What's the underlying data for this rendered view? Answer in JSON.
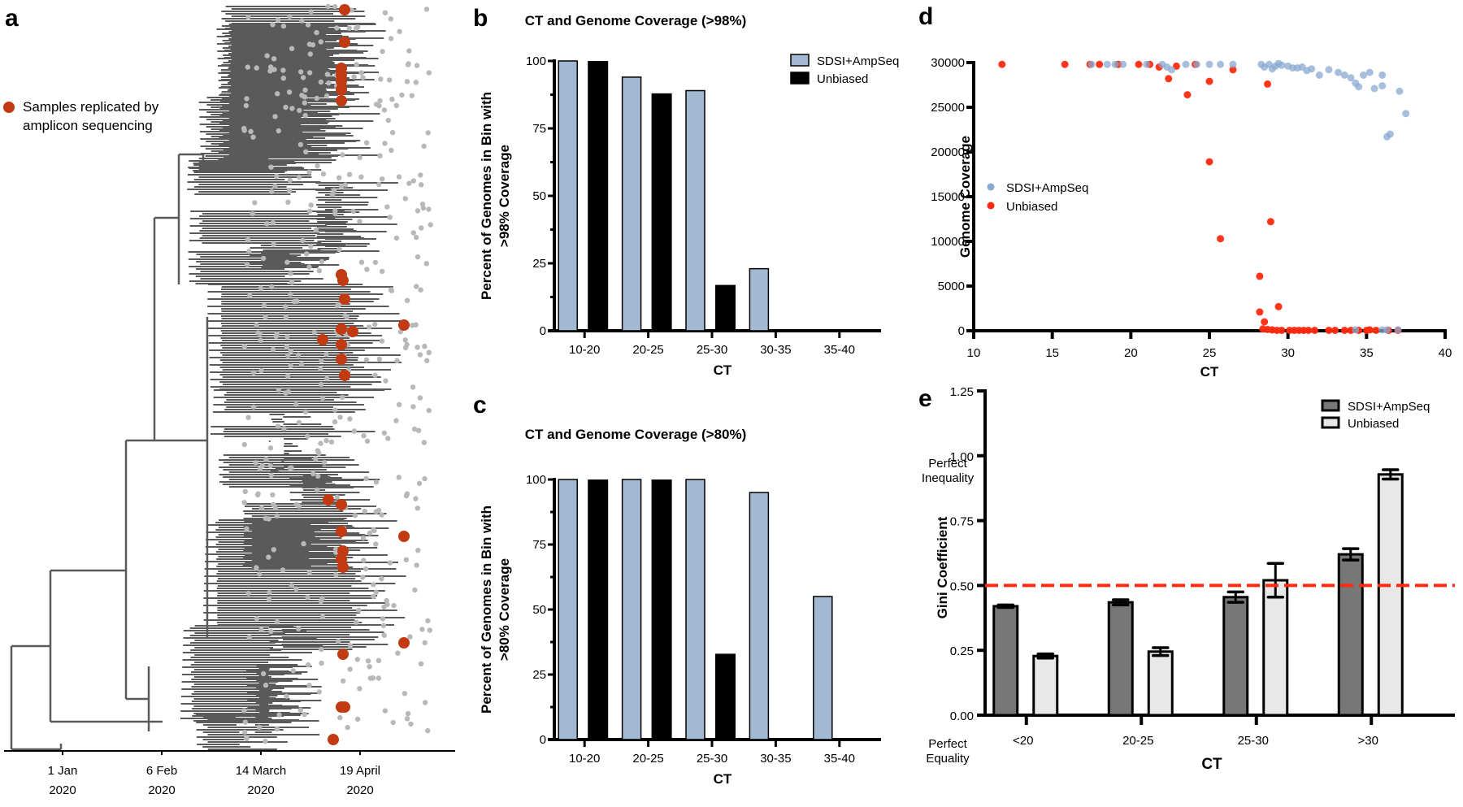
{
  "figure": {
    "panel_letters": [
      "a",
      "b",
      "c",
      "d",
      "e"
    ]
  },
  "colors": {
    "sdsi_bar": "#a3b8d1",
    "unbiased_bar": "#000000",
    "sdsi_point": "#8aa9d1",
    "unbiased_point": "#ff2a10",
    "tree_branch": "#5a5a5a",
    "tree_tip": "#b8b8b8",
    "replicated": "#c23a12",
    "gini_sdsi": "#777777",
    "gini_unbiased": "#e8e8e8",
    "threshold": "#ff2a10"
  },
  "chart_data": [
    {
      "panel": "a",
      "type": "tree",
      "legend": [
        "Samples replicated by",
        "amplicon sequencing"
      ],
      "x_ticks": [
        {
          "line1": "1 Jan",
          "line2": "2020"
        },
        {
          "line1": "6 Feb",
          "line2": "2020"
        },
        {
          "line1": "14 March",
          "line2": "2020"
        },
        {
          "line1": "19 April",
          "line2": "2020"
        }
      ]
    },
    {
      "panel": "b",
      "type": "bar",
      "title": "CT and Genome Coverage (>98%)",
      "xlabel": "CT",
      "ylabel": [
        "Percent of Genomes in Bin with",
        ">98% Coverage"
      ],
      "categories": [
        "10-20",
        "20-25",
        "25-30",
        "30-35",
        "35-40"
      ],
      "series": [
        {
          "name": "SDSI+AmpSeq",
          "values": [
            100,
            94,
            89,
            23,
            0
          ]
        },
        {
          "name": "Unbiased",
          "values": [
            100,
            88,
            17,
            0,
            0
          ]
        }
      ],
      "ylim": [
        0,
        100
      ],
      "yticks": [
        0,
        25,
        50,
        75,
        100
      ],
      "legend_position": "top-right"
    },
    {
      "panel": "c",
      "type": "bar",
      "title": "CT and Genome Coverage (>80%)",
      "xlabel": "CT",
      "ylabel": [
        "Percent of Genomes in Bin with",
        ">80% Coverage"
      ],
      "categories": [
        "10-20",
        "20-25",
        "25-30",
        "30-35",
        "35-40"
      ],
      "series": [
        {
          "name": "SDSI+AmpSeq",
          "values": [
            100,
            100,
            100,
            95,
            55
          ]
        },
        {
          "name": "Unbiased",
          "values": [
            100,
            100,
            33,
            0,
            0
          ]
        }
      ],
      "ylim": [
        0,
        100
      ],
      "yticks": [
        0,
        25,
        50,
        75,
        100
      ]
    },
    {
      "panel": "d",
      "type": "scatter",
      "xlabel": "CT",
      "ylabel": "Genome Coverage",
      "xlim": [
        10,
        40
      ],
      "ylim": [
        0,
        30000
      ],
      "xticks": [
        10,
        15,
        20,
        25,
        30,
        35,
        40
      ],
      "yticks": [
        0,
        5000,
        10000,
        15000,
        20000,
        25000,
        30000
      ],
      "legend_position": "center-left",
      "series": [
        {
          "name": "SDSI+AmpSeq",
          "points": [
            [
              17.5,
              29800
            ],
            [
              18.5,
              29800
            ],
            [
              19,
              29800
            ],
            [
              19.5,
              29800
            ],
            [
              21,
              29800
            ],
            [
              22,
              29800
            ],
            [
              22.3,
              29500
            ],
            [
              22.6,
              29200
            ],
            [
              23.5,
              29800
            ],
            [
              24.2,
              29800
            ],
            [
              25,
              29800
            ],
            [
              25.7,
              29800
            ],
            [
              26.5,
              29800
            ],
            [
              28.3,
              29800
            ],
            [
              28.5,
              29500
            ],
            [
              28.8,
              29800
            ],
            [
              29,
              29300
            ],
            [
              29.2,
              29600
            ],
            [
              29.4,
              29900
            ],
            [
              29.6,
              29700
            ],
            [
              30,
              29600
            ],
            [
              30.3,
              29400
            ],
            [
              30.6,
              29400
            ],
            [
              30.9,
              29500
            ],
            [
              31.2,
              29100
            ],
            [
              31.5,
              29300
            ],
            [
              32,
              28600
            ],
            [
              32.6,
              29200
            ],
            [
              33.2,
              28900
            ],
            [
              33.6,
              28600
            ],
            [
              34,
              28300
            ],
            [
              34.3,
              27700
            ],
            [
              34.5,
              27300
            ],
            [
              34.8,
              28600
            ],
            [
              35.2,
              28900
            ],
            [
              35.5,
              27100
            ],
            [
              36,
              28600
            ],
            [
              36,
              27400
            ],
            [
              36.3,
              21700
            ],
            [
              36.5,
              22000
            ],
            [
              37.1,
              26800
            ],
            [
              37.5,
              24300
            ],
            [
              34.3,
              100
            ],
            [
              36,
              100
            ],
            [
              36.3,
              100
            ],
            [
              37,
              100
            ]
          ]
        },
        {
          "name": "Unbiased",
          "points": [
            [
              11.8,
              29800
            ],
            [
              15.8,
              29800
            ],
            [
              17.4,
              29800
            ],
            [
              18,
              29800
            ],
            [
              19.2,
              29800
            ],
            [
              20.5,
              29800
            ],
            [
              21.2,
              29800
            ],
            [
              21.8,
              29500
            ],
            [
              22.4,
              28200
            ],
            [
              22.9,
              29600
            ],
            [
              23.6,
              26400
            ],
            [
              24.1,
              29800
            ],
            [
              25,
              27900
            ],
            [
              25,
              18900
            ],
            [
              25.7,
              10300
            ],
            [
              26.5,
              29200
            ],
            [
              28.2,
              6100
            ],
            [
              28.2,
              2100
            ],
            [
              28.5,
              1000
            ],
            [
              28.7,
              27600
            ],
            [
              28.9,
              12200
            ],
            [
              29.4,
              2700
            ],
            [
              28.4,
              200
            ],
            [
              28.7,
              150
            ],
            [
              29,
              100
            ],
            [
              29.3,
              50
            ],
            [
              29.6,
              50
            ],
            [
              30.1,
              50
            ],
            [
              30.4,
              50
            ],
            [
              30.7,
              50
            ],
            [
              31,
              50
            ],
            [
              31.3,
              50
            ],
            [
              31.7,
              50
            ],
            [
              32.6,
              50
            ],
            [
              33,
              50
            ],
            [
              33.6,
              50
            ],
            [
              34,
              50
            ],
            [
              34.5,
              50
            ],
            [
              35,
              50
            ],
            [
              35.2,
              100
            ],
            [
              35.6,
              50
            ],
            [
              36.4,
              50
            ],
            [
              37,
              50
            ]
          ]
        }
      ]
    },
    {
      "panel": "e",
      "type": "bar",
      "xlabel": "CT",
      "ylabel": "Gini Coefficient",
      "categories": [
        "<20",
        "20-25",
        "25-30",
        ">30"
      ],
      "series": [
        {
          "name": "SDSI+AmpSeq",
          "values": [
            0.42,
            0.435,
            0.455,
            0.62
          ],
          "errors": [
            0.005,
            0.01,
            0.02,
            0.022
          ]
        },
        {
          "name": "Unbiased",
          "values": [
            0.228,
            0.245,
            0.52,
            0.928
          ],
          "errors": [
            0.008,
            0.015,
            0.065,
            0.018
          ]
        }
      ],
      "ylim": [
        0,
        1.25
      ],
      "yticks": [
        "0.00",
        "0.25",
        "0.50",
        "0.75",
        "1.00",
        "1.25"
      ],
      "threshold": 0.5,
      "annotations": {
        "top": [
          "Perfect",
          "Inequality"
        ],
        "bottom": [
          "Perfect",
          "Equality"
        ]
      },
      "legend_position": "top-right"
    }
  ]
}
